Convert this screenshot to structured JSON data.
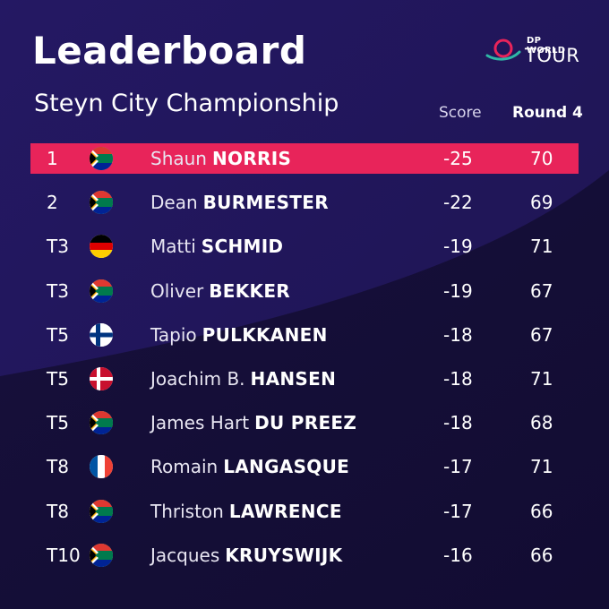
{
  "header": {
    "title": "Leaderboard",
    "subtitle": "Steyn City Championship",
    "score_label": "Score",
    "round_label": "Round 4"
  },
  "logo": {
    "line1": "DP WORLD",
    "line2": "TOUR"
  },
  "colors": {
    "background": "#1a1245",
    "leader_highlight": "#e8245a"
  },
  "rows": [
    {
      "pos": "1",
      "flag": "south-africa-flag",
      "first": "Shaun",
      "last": "NORRIS",
      "score": "-25",
      "round": "70"
    },
    {
      "pos": "2",
      "flag": "south-africa-flag",
      "first": "Dean",
      "last": "BURMESTER",
      "score": "-22",
      "round": "69"
    },
    {
      "pos": "T3",
      "flag": "germany-flag",
      "first": "Matti",
      "last": "SCHMID",
      "score": "-19",
      "round": "71"
    },
    {
      "pos": "T3",
      "flag": "south-africa-flag",
      "first": "Oliver",
      "last": "BEKKER",
      "score": "-19",
      "round": "67"
    },
    {
      "pos": "T5",
      "flag": "finland-flag",
      "first": "Tapio",
      "last": "PULKKANEN",
      "score": "-18",
      "round": "67"
    },
    {
      "pos": "T5",
      "flag": "denmark-flag",
      "first": "Joachim B.",
      "last": "HANSEN",
      "score": "-18",
      "round": "71"
    },
    {
      "pos": "T5",
      "flag": "south-africa-flag",
      "first": "James Hart",
      "last": "DU PREEZ",
      "score": "-18",
      "round": "68"
    },
    {
      "pos": "T8",
      "flag": "france-flag",
      "first": "Romain",
      "last": "LANGASQUE",
      "score": "-17",
      "round": "71"
    },
    {
      "pos": "T8",
      "flag": "south-africa-flag",
      "first": "Thriston",
      "last": "LAWRENCE",
      "score": "-17",
      "round": "66"
    },
    {
      "pos": "T10",
      "flag": "south-africa-flag",
      "first": "Jacques",
      "last": "KRUYSWIJK",
      "score": "-16",
      "round": "66"
    }
  ]
}
